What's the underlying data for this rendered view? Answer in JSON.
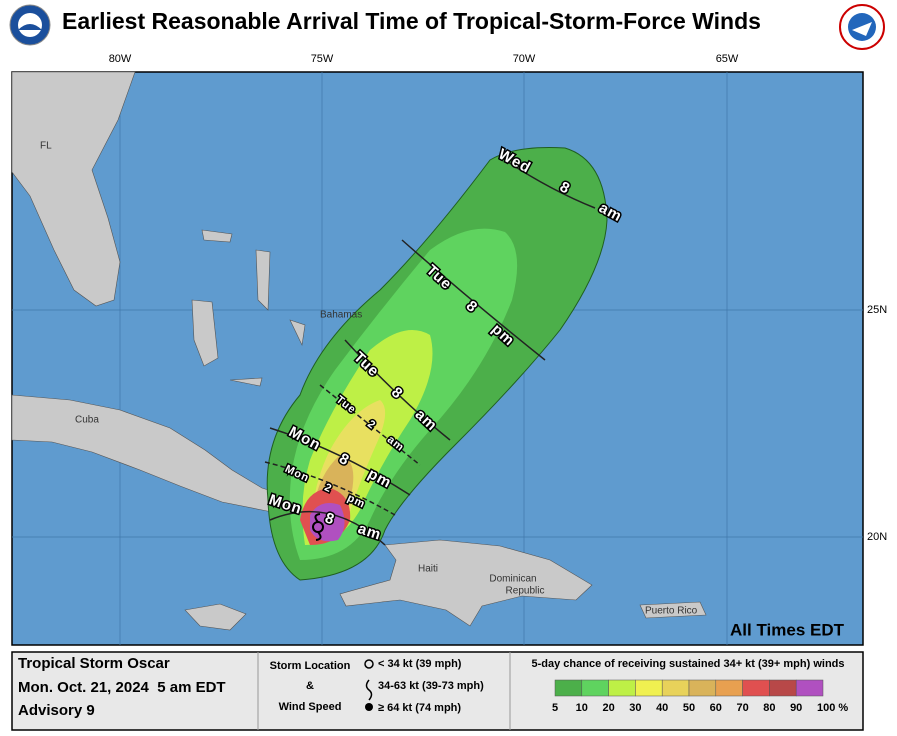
{
  "header": {
    "title": "Earliest Reasonable Arrival Time of Tropical-Storm-Force Winds"
  },
  "map": {
    "longitude_labels": [
      "80W",
      "75W",
      "70W",
      "65W"
    ],
    "latitude_labels": [
      "25N",
      "20N"
    ],
    "places": {
      "florida": "FL",
      "cuba": "Cuba",
      "bahamas": "Bahamas",
      "haiti": "Haiti",
      "dominican_republic": [
        "Dominican",
        "Republic"
      ],
      "puerto_rico": "Puerto Rico"
    },
    "arrival_times": [
      "Wed 8 am",
      "Tue 8 pm",
      "Tue 8 am",
      "Tue 2 am",
      "Mon 8 pm",
      "Mon 2 pm",
      "Mon 8 am"
    ],
    "note": "All Times EDT"
  },
  "footer": {
    "storm_name": "Tropical Storm Oscar",
    "datetime": "Mon. Oct. 21, 2024  5 am EDT",
    "advisory": "Advisory 9",
    "storm_location_label": [
      "Storm Location",
      "&",
      "Wind Speed"
    ],
    "wind_legend": [
      "< 34 kt (39 mph)",
      "34-63 kt (39-73 mph)",
      "≥ 64 kt (74 mph)"
    ],
    "probability_title": "5-day chance of receiving sustained 34+ kt (39+ mph) winds",
    "probability_legend": [
      "5",
      "10",
      "20",
      "30",
      "40",
      "50",
      "60",
      "70",
      "80",
      "90",
      "100 %"
    ]
  }
}
